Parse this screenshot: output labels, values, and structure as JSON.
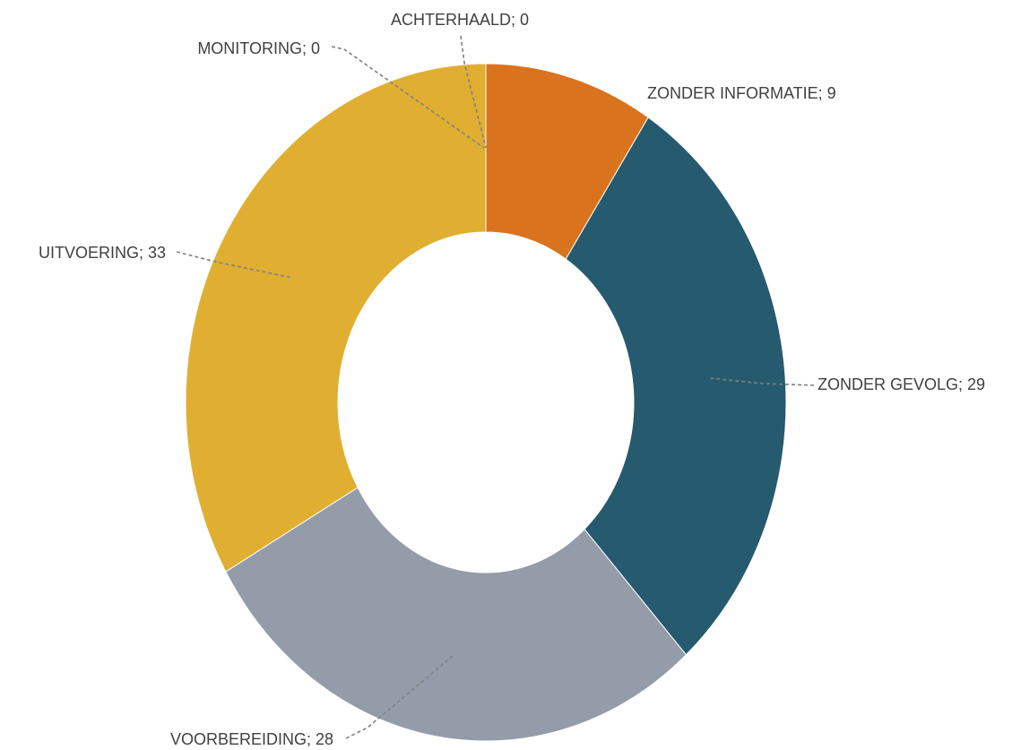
{
  "chart_data": {
    "type": "donut",
    "values": [
      9,
      29,
      28,
      33,
      0,
      0
    ],
    "value_labels": [
      "ZONDER INFORMATIE; 9",
      "ZONDER GEVOLG; 29",
      "VOORBEREIDING; 28",
      "UITVOERING; 33",
      "MONITORING; 0",
      "ACHTERHAALD; 0"
    ],
    "colors": [
      "#d9731d",
      "#265a6e",
      "#939ca8",
      "#e0af32",
      "#7f7f7f",
      "#a5a5a5"
    ]
  }
}
